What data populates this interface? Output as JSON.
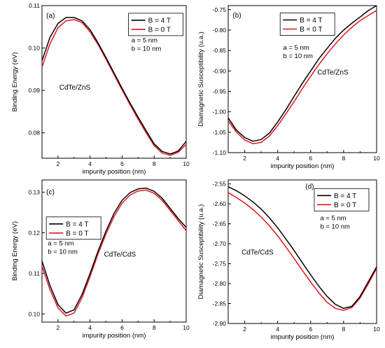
{
  "chart_data": [
    {
      "type": "line",
      "panel_label": "(a)",
      "xlabel": "impurity position (nm)",
      "ylabel": "Binding Energy (eV)",
      "xlim": [
        1,
        10
      ],
      "ylim": [
        0.074,
        0.11
      ],
      "xticks": [
        2,
        4,
        6,
        8,
        10
      ],
      "yticks": [
        0.08,
        0.09,
        0.1,
        0.11
      ],
      "ytick_labels": [
        "0.08",
        "0.09",
        "0.10",
        "0.11"
      ],
      "material_label": "CdTe/ZnS",
      "params": [
        "a = 5 nm",
        "b = 10 nm"
      ],
      "legend_position": "top-right",
      "series": [
        {
          "name": "B = 4 T",
          "color": "#000000",
          "x": [
            1,
            1.5,
            2,
            2.5,
            3,
            3.5,
            4,
            4.5,
            5,
            5.5,
            6,
            6.5,
            7,
            7.5,
            8,
            8.5,
            9,
            9.5,
            10
          ],
          "y": [
            0.097,
            0.1025,
            0.1058,
            0.1072,
            0.1072,
            0.1064,
            0.1043,
            0.1012,
            0.0977,
            0.0941,
            0.0905,
            0.087,
            0.0837,
            0.0805,
            0.0774,
            0.0756,
            0.075,
            0.0757,
            0.078
          ]
        },
        {
          "name": "B = 0 T",
          "color": "#e4141c",
          "x": [
            1,
            1.5,
            2,
            2.5,
            3,
            3.5,
            4,
            4.5,
            5,
            5.5,
            6,
            6.5,
            7,
            7.5,
            8,
            8.5,
            9,
            9.5,
            10
          ],
          "y": [
            0.0955,
            0.101,
            0.1048,
            0.1064,
            0.1067,
            0.106,
            0.1038,
            0.1008,
            0.0973,
            0.0937,
            0.0901,
            0.0866,
            0.0832,
            0.08,
            0.077,
            0.0752,
            0.0747,
            0.0754,
            0.0773
          ]
        }
      ]
    },
    {
      "type": "line",
      "panel_label": "(b)",
      "xlabel": "impurity position (nm)",
      "ylabel": "Diamagnetic Susceptibility (u.a.)",
      "xlim": [
        1,
        10
      ],
      "ylim": [
        -1.1,
        -0.74
      ],
      "xticks": [
        2,
        4,
        6,
        8,
        10
      ],
      "yticks": [
        -1.1,
        -1.05,
        -1.0,
        -0.95,
        -0.9,
        -0.85,
        -0.8,
        -0.75
      ],
      "ytick_labels": [
        "-1.10",
        "-1.05",
        "-1.00",
        "-0.95",
        "-0.90",
        "-0.85",
        "-0.80",
        "-0.75"
      ],
      "material_label": "CdTe/ZnS",
      "params": [
        "a = 5 nm",
        "b = 10 nm"
      ],
      "legend_position": "top-center",
      "series": [
        {
          "name": "B = 4 T",
          "color": "#000000",
          "x": [
            1,
            1.5,
            2,
            2.5,
            3,
            3.5,
            4,
            4.5,
            5,
            5.5,
            6,
            6.5,
            7,
            7.5,
            8,
            8.5,
            9,
            9.5,
            10
          ],
          "y": [
            -1.015,
            -1.045,
            -1.063,
            -1.072,
            -1.068,
            -1.052,
            -1.025,
            -0.995,
            -0.962,
            -0.93,
            -0.9,
            -0.87,
            -0.845,
            -0.82,
            -0.8,
            -0.783,
            -0.768,
            -0.752,
            -0.74
          ]
        },
        {
          "name": "B = 0 T",
          "color": "#e4141c",
          "x": [
            1,
            1.5,
            2,
            2.5,
            3,
            3.5,
            4,
            4.5,
            5,
            5.5,
            6,
            6.5,
            7,
            7.5,
            8,
            8.5,
            9,
            9.5,
            10
          ],
          "y": [
            -1.022,
            -1.05,
            -1.069,
            -1.078,
            -1.075,
            -1.059,
            -1.034,
            -1.005,
            -0.975,
            -0.943,
            -0.913,
            -0.884,
            -0.858,
            -0.834,
            -0.812,
            -0.793,
            -0.777,
            -0.764,
            -0.752
          ]
        }
      ]
    },
    {
      "type": "line",
      "panel_label": "(c)",
      "xlabel": "impurity position (nm)",
      "ylabel": "Binding Energy (eV)",
      "xlim": [
        1,
        10
      ],
      "ylim": [
        0.098,
        0.133
      ],
      "xticks": [
        2,
        4,
        6,
        8,
        10
      ],
      "yticks": [
        0.1,
        0.11,
        0.12,
        0.13
      ],
      "ytick_labels": [
        "0.10",
        "0.11",
        "0.12",
        "0.13"
      ],
      "material_label": "CdTe/CdS",
      "params": [
        "a = 5 nm",
        "b = 10 nm"
      ],
      "legend_position": "middle-left",
      "series": [
        {
          "name": "B = 4 T",
          "color": "#000000",
          "x": [
            1,
            1.5,
            2,
            2.5,
            3,
            3.5,
            4,
            4.5,
            5,
            5.5,
            6,
            6.5,
            7,
            7.5,
            8,
            8.5,
            9,
            9.5,
            10
          ],
          "y": [
            0.113,
            0.107,
            0.1023,
            0.1002,
            0.101,
            0.1048,
            0.11,
            0.1155,
            0.1205,
            0.1248,
            0.128,
            0.1299,
            0.1308,
            0.131,
            0.1302,
            0.1285,
            0.126,
            0.1235,
            0.1213
          ]
        },
        {
          "name": "B = 0 T",
          "color": "#e4141c",
          "x": [
            1,
            1.5,
            2,
            2.5,
            3,
            3.5,
            4,
            4.5,
            5,
            5.5,
            6,
            6.5,
            7,
            7.5,
            8,
            8.5,
            9,
            9.5,
            10
          ],
          "y": [
            0.1118,
            0.106,
            0.1015,
            0.0995,
            0.1002,
            0.104,
            0.1092,
            0.1148,
            0.1198,
            0.124,
            0.1273,
            0.1293,
            0.1303,
            0.1305,
            0.1297,
            0.128,
            0.1255,
            0.123,
            0.1205
          ]
        }
      ]
    },
    {
      "type": "line",
      "panel_label": "(d)",
      "xlabel": "impurity position (nm)",
      "ylabel": "Diamagnetic Susceptibility (u.a.)",
      "xlim": [
        1,
        10
      ],
      "ylim": [
        -2.9,
        -2.54
      ],
      "xticks": [
        2,
        4,
        6,
        8,
        10
      ],
      "yticks": [
        -2.9,
        -2.85,
        -2.8,
        -2.75,
        -2.7,
        -2.65,
        -2.6,
        -2.55
      ],
      "ytick_labels": [
        "-2.90",
        "-2.85",
        "-2.80",
        "-2.75",
        "-2.70",
        "-2.65",
        "-2.60",
        "-2.55"
      ],
      "material_label": "CdTe/CdS",
      "params": [
        "a = 5 nm",
        "b = 10 nm"
      ],
      "legend_position": "top-right",
      "series": [
        {
          "name": "B = 4 T",
          "color": "#000000",
          "x": [
            1,
            1.5,
            2,
            2.5,
            3,
            3.5,
            4,
            4.5,
            5,
            5.5,
            6,
            6.5,
            7,
            7.5,
            8,
            8.5,
            9,
            9.5,
            10
          ],
          "y": [
            -2.557,
            -2.567,
            -2.58,
            -2.595,
            -2.613,
            -2.635,
            -2.66,
            -2.688,
            -2.717,
            -2.748,
            -2.778,
            -2.807,
            -2.832,
            -2.852,
            -2.862,
            -2.857,
            -2.832,
            -2.795,
            -2.758
          ]
        },
        {
          "name": "B = 0 T",
          "color": "#e4141c",
          "x": [
            1,
            1.5,
            2,
            2.5,
            3,
            3.5,
            4,
            4.5,
            5,
            5.5,
            6,
            6.5,
            7,
            7.5,
            8,
            8.5,
            9,
            9.5,
            10
          ],
          "y": [
            -2.572,
            -2.584,
            -2.598,
            -2.614,
            -2.633,
            -2.655,
            -2.68,
            -2.708,
            -2.737,
            -2.767,
            -2.796,
            -2.823,
            -2.847,
            -2.862,
            -2.867,
            -2.86,
            -2.836,
            -2.8,
            -2.762
          ]
        }
      ]
    }
  ]
}
